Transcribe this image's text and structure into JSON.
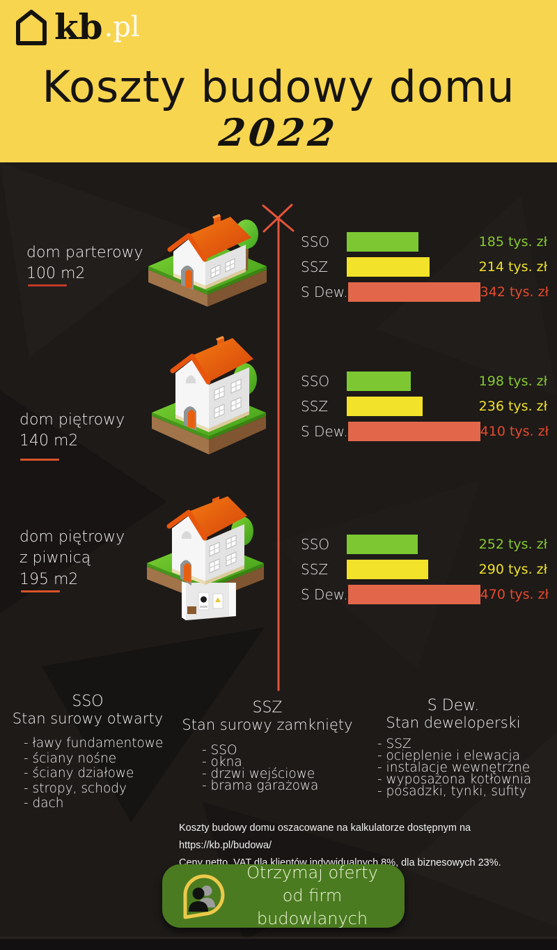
{
  "brand": {
    "logo_text_dark": "kb",
    "logo_text_light": ".pl",
    "logo_icon": "house-outline-icon"
  },
  "header": {
    "title": "Koszty budowy domu",
    "year": "2022",
    "bg_color": "#f8d54e"
  },
  "chart_data": {
    "type": "bar",
    "orientation": "horizontal",
    "unit": "tys. zł",
    "axis_color": "#e5543a",
    "categories": [
      "SSO",
      "SSZ",
      "S Dew."
    ],
    "bar_colors": [
      "#7dc832",
      "#f2e229",
      "#e2674a"
    ],
    "value_text_colors": [
      "#86c92e",
      "#f0e229",
      "#e64a2c"
    ],
    "charts": [
      {
        "name": "dom parterowy 100 m2",
        "label_lines": [
          "dom parterowy",
          "100 m2"
        ],
        "illustration": "single-story-house-illustration",
        "underline_color": "#c3392a",
        "values": [
          185,
          214,
          342
        ],
        "value_labels": [
          "185 tys. zł",
          "214 tys. zł",
          "342 tys. zł"
        ]
      },
      {
        "name": "dom piętrowy 140 m2",
        "label_lines": [
          "dom piętrowy",
          "140 m2"
        ],
        "illustration": "two-story-house-illustration",
        "underline_color": "#d95329",
        "values": [
          198,
          236,
          410
        ],
        "value_labels": [
          "198 tys. zł",
          "236 tys. zł",
          "410 tys. zł"
        ]
      },
      {
        "name": "dom piętrowy z piwnicą 195 m2",
        "label_lines": [
          "dom piętrowy",
          "z piwnicą",
          "195 m2"
        ],
        "illustration": "two-story-house-with-basement-illustration",
        "underline_color": "#d95329",
        "values": [
          252,
          290,
          470
        ],
        "value_labels": [
          "252 tys. zł",
          "290 tys. zł",
          "470 tys. zł"
        ]
      }
    ]
  },
  "legend": {
    "columns": [
      {
        "abbr": "SSO",
        "title": "Stan surowy otwarty",
        "items": [
          "- ławy fundamentowe",
          "- ściany nośne",
          "- ściany działowe",
          "- stropy, schody",
          "- dach"
        ]
      },
      {
        "abbr": "SSZ",
        "title": "Stan surowy zamknięty",
        "items": [
          "- SSO",
          "- okna",
          "- drzwi wejściowe",
          "- brama garażowa"
        ]
      },
      {
        "abbr": "S Dew.",
        "title": "Stan deweloperski",
        "items": [
          "- SSZ",
          "- ocieplenie i elewacja",
          "- instalacje wewnętrzne",
          "- wyposażona kotłownia",
          "- posadzki, tynki, sufity"
        ]
      }
    ]
  },
  "footnote": {
    "line1": "Koszty budowy domu oszacowane na kalkulatorze dostępnym na https://kb.pl/budowa/",
    "line2": "Ceny netto, VAT dla klientów indywidualnych 8%, dla biznesowych 23%."
  },
  "cta": {
    "line1": "Otrzymaj oferty",
    "line2": "od firm budowlanych",
    "icon": "people-chat-icon",
    "bg_color": "#4b7b20",
    "icon_outline_color": "#ecc94b"
  }
}
